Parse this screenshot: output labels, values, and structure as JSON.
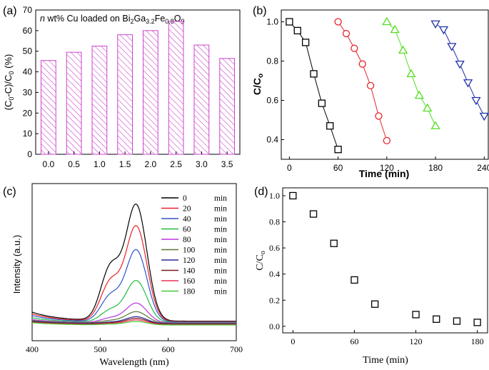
{
  "colors": {
    "axis": "#000000",
    "bar_stroke": "#cc44cc",
    "bar_hatch": "#cc44cc",
    "b_series": [
      "#000000",
      "#e8212a",
      "#55dd22",
      "#2233aa"
    ],
    "c_series": [
      "#000000",
      "#e8212a",
      "#2e55c8",
      "#22bb44",
      "#bb33dd",
      "#557733",
      "#2a2a99",
      "#7a1a1a",
      "#ee3355",
      "#44cc33"
    ],
    "d_marker": "#000000"
  },
  "chart_data": [
    {
      "panel": "(a)",
      "type": "bar",
      "title": "n wt% Cu loaded on Bi2Ga3.2Fe0.8O9",
      "title_parts": {
        "italic": "n",
        "text": " wt% Cu loaded on Bi",
        "sub1": "2",
        "t2": "Ga",
        "sub2": "3.2",
        "t3": "Fe",
        "sub3": "0.8",
        "t4": "O",
        "sub4": "9"
      },
      "xlabel": "",
      "ylabel": "(C0-C)/C0 (%)",
      "ylabel_parts": {
        "t1": "(C",
        "s1": "0",
        "t2": "-C)/C",
        "s2": "0",
        "t3": " (%)"
      },
      "categories": [
        "0.0",
        "0.5",
        "1.0",
        "1.5",
        "2.0",
        "2.5",
        "3.0",
        "3.5"
      ],
      "values": [
        45.5,
        49.5,
        52.5,
        58,
        60,
        64.5,
        53,
        46.5
      ],
      "ylim": [
        0,
        70
      ],
      "yticks": [
        "0",
        "10",
        "20",
        "30",
        "40",
        "50",
        "60",
        "70"
      ]
    },
    {
      "panel": "(b)",
      "type": "line",
      "xlabel": "Time (min)",
      "ylabel": "C/Co",
      "ylabel_parts": {
        "t1": "C/C",
        "s1": "o"
      },
      "xlim": [
        -10,
        245
      ],
      "ylim": [
        0.3,
        1.06
      ],
      "xticks": [
        "0",
        "60",
        "120",
        "180",
        "240"
      ],
      "yticks": [
        "0.4",
        "0.6",
        "0.8",
        "1.0"
      ],
      "series": [
        {
          "marker": "square",
          "x": [
            0,
            10,
            20,
            30,
            40,
            50,
            60
          ],
          "y": [
            1.0,
            0.955,
            0.895,
            0.735,
            0.585,
            0.47,
            0.35
          ]
        },
        {
          "marker": "circle",
          "x": [
            60,
            70,
            80,
            90,
            100,
            110,
            120
          ],
          "y": [
            1.0,
            0.94,
            0.865,
            0.785,
            0.675,
            0.52,
            0.395
          ]
        },
        {
          "marker": "triangle-up",
          "x": [
            120,
            130,
            140,
            150,
            160,
            170,
            180
          ],
          "y": [
            1.0,
            0.96,
            0.855,
            0.735,
            0.625,
            0.56,
            0.47
          ]
        },
        {
          "marker": "triangle-down",
          "x": [
            180,
            190,
            200,
            210,
            220,
            230,
            240
          ],
          "y": [
            0.99,
            0.96,
            0.875,
            0.785,
            0.69,
            0.6,
            0.52
          ]
        }
      ]
    },
    {
      "panel": "(c)",
      "type": "line",
      "xlabel": "Wavelength (nm)",
      "ylabel": "Intensity (a.u.)",
      "xlim": [
        400,
        700
      ],
      "xticks": [
        "400",
        "500",
        "600",
        "700"
      ],
      "legend_position": "top-right",
      "legend": [
        "0 min",
        "20 min",
        "40 min",
        "60 min",
        "80 min",
        "100 min",
        "120 min",
        "140 min",
        "160 min",
        "180 min"
      ],
      "legend_nums": [
        "0",
        "20",
        "40",
        "60",
        "80",
        "100",
        "120",
        "140",
        "160",
        "180"
      ],
      "legend_unit": "min",
      "peak_wavelength": 553,
      "peak_heights": [
        1.0,
        0.82,
        0.62,
        0.36,
        0.17,
        0.1,
        0.06,
        0.05,
        0.04,
        0.03
      ]
    },
    {
      "panel": "(d)",
      "type": "scatter",
      "xlabel": "Time (min)",
      "ylabel": "C/Co",
      "ylabel_parts": {
        "t1": "C/C",
        "s1": "o"
      },
      "xlim": [
        -10,
        190
      ],
      "ylim": [
        -0.05,
        1.06
      ],
      "xticks": [
        "0",
        "60",
        "120",
        "180"
      ],
      "yticks": [
        "0.0",
        "0.2",
        "0.4",
        "0.6",
        "0.8",
        "1.0"
      ],
      "x": [
        0,
        20,
        40,
        60,
        80,
        120,
        140,
        160,
        180
      ],
      "y": [
        1.0,
        0.86,
        0.635,
        0.355,
        0.17,
        0.09,
        0.055,
        0.04,
        0.03
      ]
    }
  ]
}
